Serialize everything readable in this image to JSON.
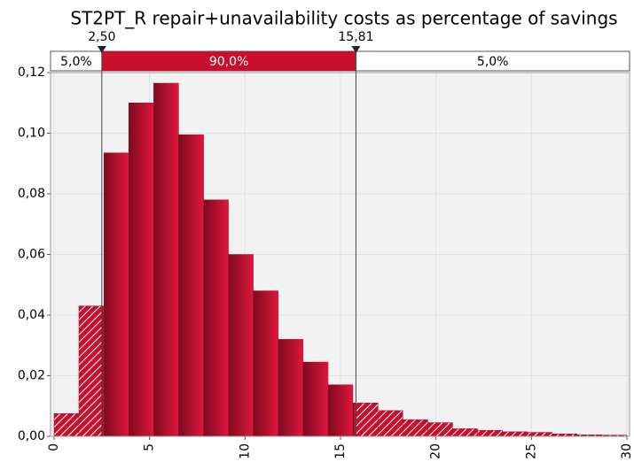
{
  "chart_data": {
    "type": "histogram",
    "title": "ST2PT_R repair+unavailability costs as percentage of savings",
    "bins": [
      0,
      1.3,
      2.61,
      3.91,
      5.22,
      6.52,
      7.83,
      9.13,
      10.43,
      11.74,
      13.04,
      14.35,
      15.65,
      16.96,
      18.26,
      19.57,
      20.87,
      22.17,
      23.48,
      24.78,
      26.09,
      27.39,
      28.7,
      30
    ],
    "values": [
      0.0075,
      0.043,
      0.0935,
      0.11,
      0.1165,
      0.0995,
      0.078,
      0.06,
      0.048,
      0.032,
      0.0245,
      0.017,
      0.011,
      0.0085,
      0.0055,
      0.0045,
      0.0025,
      0.002,
      0.0015,
      0.0013,
      0.0008,
      0.0005,
      0.0004
    ],
    "color": "#c8102e",
    "xlim": [
      0,
      30
    ],
    "xticks": [
      0,
      5,
      10,
      15,
      20,
      25,
      30
    ],
    "ylim": [
      0,
      0.12
    ],
    "yticks": [
      {
        "value": 0,
        "label": "0,00"
      },
      {
        "value": 0.02,
        "label": "0,02"
      },
      {
        "value": 0.04,
        "label": "0,04"
      },
      {
        "value": 0.06,
        "label": "0,06"
      },
      {
        "value": 0.08,
        "label": "0,08"
      },
      {
        "value": 0.1,
        "label": "0,10"
      },
      {
        "value": 0.12,
        "label": "0,12"
      }
    ],
    "grid": true,
    "delimiters": [
      {
        "value": 2.5,
        "label": "2,50"
      },
      {
        "value": 15.81,
        "label": "15,81"
      }
    ],
    "percentages": [
      {
        "value": 5.0,
        "label": "5,0%"
      },
      {
        "value": 90.0,
        "label": "90,0%"
      },
      {
        "value": 5.0,
        "label": "5,0%"
      }
    ]
  }
}
